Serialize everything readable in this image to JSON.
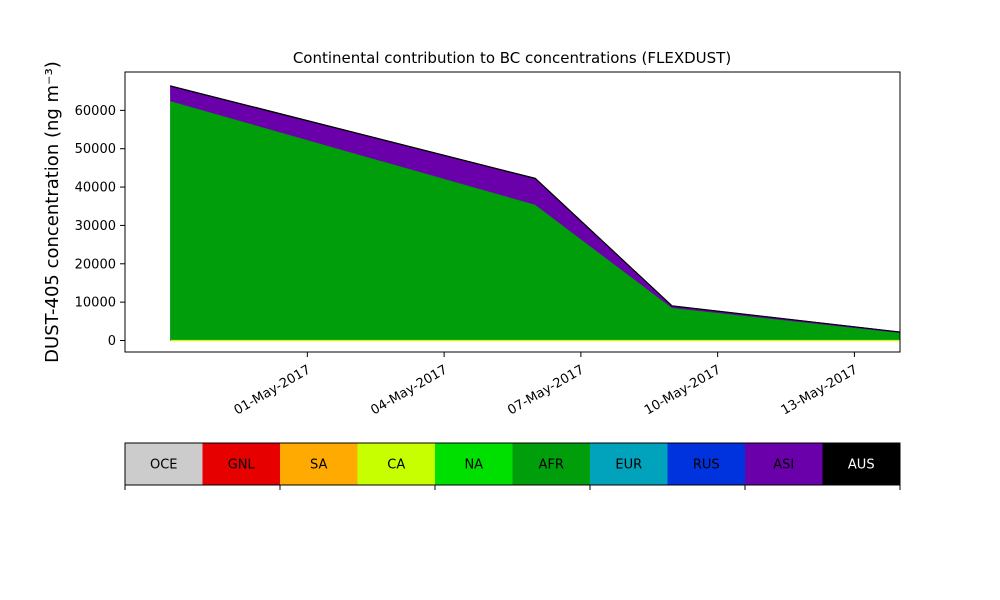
{
  "chart_data": {
    "type": "area",
    "title": "Continental contribution to BC concentrations (FLEXDUST)",
    "ylabel": "DUST-405 concentration (ng m⁻³)",
    "xlabel": "",
    "ylim": [
      -3000,
      70000
    ],
    "xlim": [
      "2017-04-27",
      "2017-05-14"
    ],
    "grid": false,
    "y_ticks": [
      0,
      10000,
      20000,
      30000,
      40000,
      50000,
      60000
    ],
    "y_tick_labels": [
      "0",
      "10000",
      "20000",
      "30000",
      "40000",
      "50000",
      "60000"
    ],
    "x_ticks": [
      "2017-05-01",
      "2017-05-04",
      "2017-05-07",
      "2017-05-10",
      "2017-05-13"
    ],
    "x_tick_labels": [
      "01-May-2017",
      "04-May-2017",
      "07-May-2017",
      "10-May-2017",
      "13-May-2017"
    ],
    "x": [
      "2017-04-28",
      "2017-05-06",
      "2017-05-09",
      "2017-05-14"
    ],
    "stacked": true,
    "series": [
      {
        "name": "OCE",
        "color": "#cccccc",
        "values": [
          0,
          0,
          0,
          0
        ]
      },
      {
        "name": "GNL",
        "color": "#e60000",
        "values": [
          0,
          0,
          0,
          0
        ]
      },
      {
        "name": "SA",
        "color": "#ffaa00",
        "values": [
          0,
          0,
          0,
          0
        ]
      },
      {
        "name": "CA",
        "color": "#c8ff00",
        "values": [
          0,
          0,
          0,
          0
        ]
      },
      {
        "name": "NA",
        "color": "#00e000",
        "values": [
          0,
          0,
          0,
          0
        ]
      },
      {
        "name": "AFR",
        "color": "#009e0a",
        "values": [
          62500,
          35500,
          8600,
          2100
        ]
      },
      {
        "name": "EUR",
        "color": "#00a3bb",
        "values": [
          0,
          0,
          0,
          0
        ]
      },
      {
        "name": "RUS",
        "color": "#0033dd",
        "values": [
          0,
          0,
          0,
          0
        ]
      },
      {
        "name": "ASI",
        "color": "#6a00aa",
        "values": [
          3800,
          6700,
          400,
          100
        ]
      },
      {
        "name": "AUS",
        "color": "#000000",
        "values": [
          100,
          100,
          50,
          20
        ]
      }
    ],
    "legend": {
      "placement": "bottom colorbar",
      "labels": [
        "OCE",
        "GNL",
        "SA",
        "CA",
        "NA",
        "AFR",
        "EUR",
        "RUS",
        "ASI",
        "AUS"
      ],
      "text_colors": [
        "#000000",
        "#000000",
        "#000000",
        "#000000",
        "#000000",
        "#000000",
        "#000000",
        "#000000",
        "#000000",
        "#ffffff"
      ]
    }
  }
}
